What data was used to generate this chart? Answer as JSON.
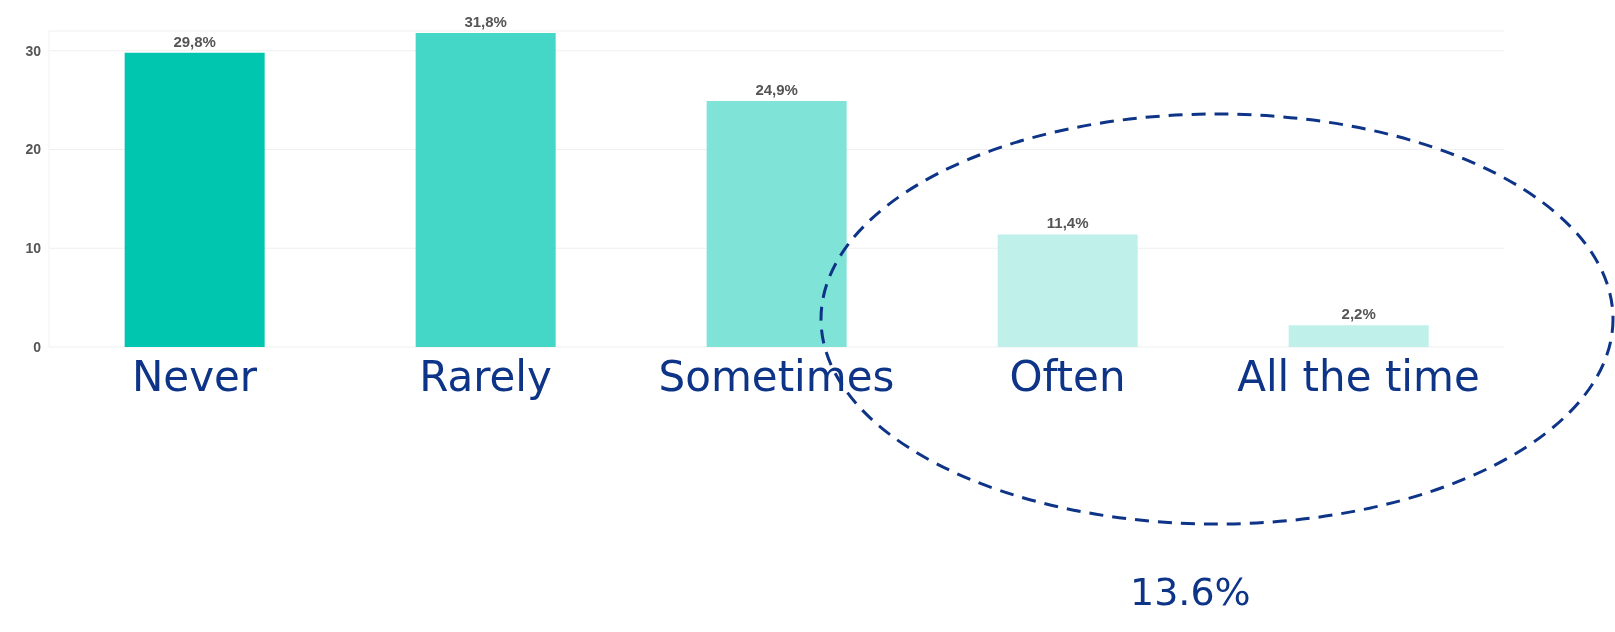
{
  "chart_data": {
    "type": "bar",
    "categories": [
      "Never",
      "Rarely",
      "Sometimes",
      "Often",
      "All the time"
    ],
    "values": [
      29.8,
      31.8,
      24.9,
      11.4,
      2.2
    ],
    "colors": [
      "#00c6b0",
      "#44d6c6",
      "#80e3d8",
      "#bff0ea",
      "#bff0ea"
    ],
    "value_labels": [
      "29,8%",
      "31,8%",
      "24,9%",
      "11,4%",
      "2,2%"
    ],
    "ylim": [
      0,
      32
    ],
    "yticks": [
      0,
      10,
      20,
      30
    ],
    "grid": "y",
    "annotations": [
      "13.6%"
    ]
  }
}
